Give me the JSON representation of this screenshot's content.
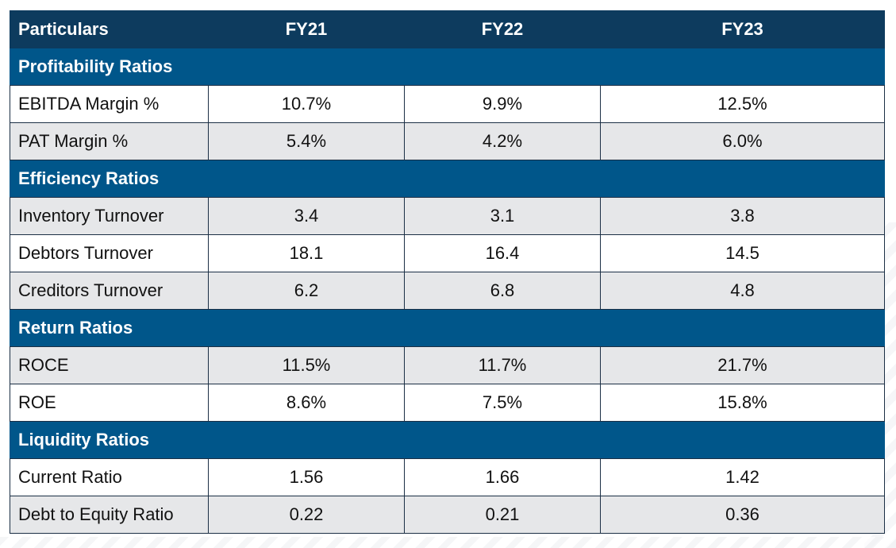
{
  "table": {
    "headers": [
      "Particulars",
      "FY21",
      "FY22",
      "FY23"
    ],
    "sections": [
      {
        "title": "Profitability Ratios",
        "rows": [
          {
            "label": "EBITDA Margin %",
            "values": [
              "10.7%",
              "9.9%",
              "12.5%"
            ]
          },
          {
            "label": "PAT Margin %",
            "values": [
              "5.4%",
              "4.2%",
              "6.0%"
            ]
          }
        ]
      },
      {
        "title": "Efficiency Ratios",
        "rows": [
          {
            "label": "Inventory Turnover",
            "values": [
              "3.4",
              "3.1",
              "3.8"
            ]
          },
          {
            "label": "Debtors Turnover",
            "values": [
              "18.1",
              "16.4",
              "14.5"
            ]
          },
          {
            "label": "Creditors Turnover",
            "values": [
              "6.2",
              "6.8",
              "4.8"
            ]
          }
        ]
      },
      {
        "title": "Return Ratios",
        "rows": [
          {
            "label": "ROCE",
            "values": [
              "11.5%",
              "11.7%",
              "21.7%"
            ]
          },
          {
            "label": "ROE",
            "values": [
              "8.6%",
              "7.5%",
              "15.8%"
            ]
          }
        ]
      },
      {
        "title": "Liquidity Ratios",
        "rows": [
          {
            "label": "Current Ratio",
            "values": [
              "1.56",
              "1.66",
              "1.42"
            ]
          },
          {
            "label": "Debt to Equity Ratio",
            "values": [
              "0.22",
              "0.21",
              "0.36"
            ]
          }
        ]
      }
    ]
  },
  "colors": {
    "header_bg": "#0d3b5e",
    "section_bg": "#00568a",
    "row_white": "#ffffff",
    "row_grey": "#e6e7e9",
    "border": "#1b2f45"
  }
}
